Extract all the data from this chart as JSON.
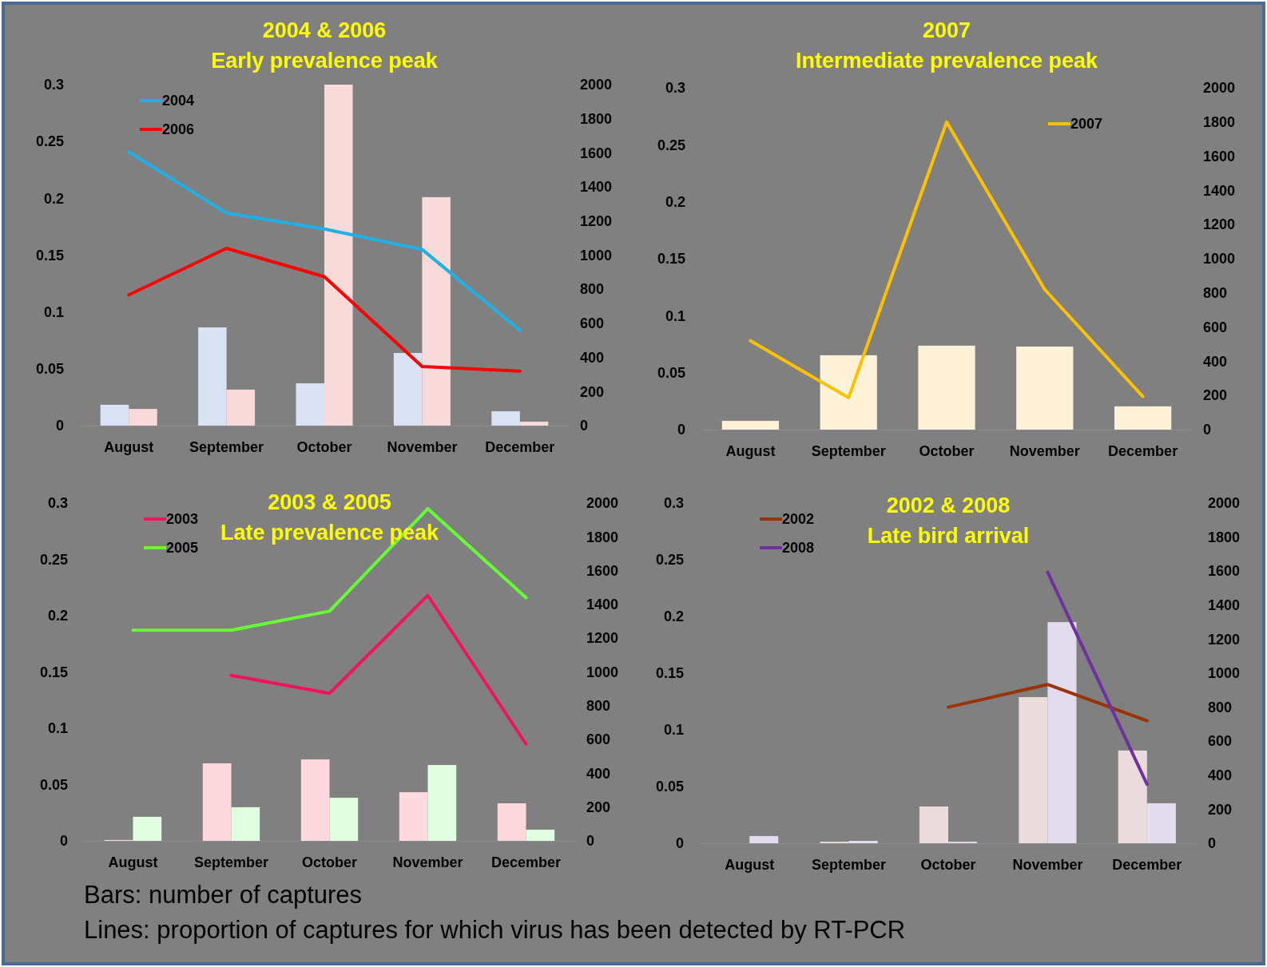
{
  "chart_data": [
    {
      "type": "bar",
      "title": "2004 & 2006",
      "subtitle": "Early prevalence peak",
      "categories": [
        "August",
        "September",
        "October",
        "November",
        "December"
      ],
      "ylim": [
        0,
        0.3
      ],
      "yticks": [
        0,
        0.05,
        0.1,
        0.15,
        0.2,
        0.25,
        0.3
      ],
      "y2lim": [
        0,
        2000
      ],
      "y2ticks": [
        0,
        200,
        400,
        600,
        800,
        1000,
        1200,
        1400,
        1600,
        1800,
        2000
      ],
      "legend": "top left",
      "series": [
        {
          "axis": "y2",
          "color": "#dae3f3",
          "values": [
            122,
            576,
            248,
            426,
            84
          ]
        },
        {
          "axis": "y2",
          "color": "#f8dada",
          "values": [
            98,
            211,
            2000,
            1340,
            23
          ]
        },
        {
          "type": "line",
          "axis": "y",
          "name": "2004",
          "color": "#1fb0e8",
          "values": [
            0.241,
            0.187,
            0.173,
            0.155,
            0.084
          ]
        },
        {
          "type": "line",
          "axis": "y",
          "name": "2006",
          "color": "#ff0000",
          "values": [
            0.115,
            0.156,
            0.131,
            0.052,
            0.048
          ]
        }
      ]
    },
    {
      "type": "bar",
      "title": "2007",
      "subtitle": "Intermediate prevalence peak",
      "categories": [
        "August",
        "September",
        "October",
        "November",
        "December"
      ],
      "ylim": [
        0,
        0.3
      ],
      "yticks": [
        0,
        0.05,
        0.1,
        0.15,
        0.2,
        0.25,
        0.3
      ],
      "y2lim": [
        0,
        2000
      ],
      "y2ticks": [
        0,
        200,
        400,
        600,
        800,
        1000,
        1200,
        1400,
        1600,
        1800,
        2000
      ],
      "legend": "top right",
      "series": [
        {
          "axis": "y2",
          "color": "#fff2d9",
          "values": [
            51,
            435,
            491,
            486,
            136
          ]
        },
        {
          "type": "line",
          "axis": "y",
          "name": "2007",
          "color": "#ffc000",
          "values": [
            0.078,
            0.028,
            0.27,
            0.123,
            0.029
          ]
        }
      ]
    },
    {
      "type": "bar",
      "title": "2003 & 2005",
      "subtitle": "Late prevalence peak",
      "categories": [
        "August",
        "September",
        "October",
        "November",
        "December"
      ],
      "ylim": [
        0,
        0.3
      ],
      "yticks": [
        0,
        0.05,
        0.1,
        0.15,
        0.2,
        0.25,
        0.3
      ],
      "y2lim": [
        0,
        2000
      ],
      "y2ticks": [
        0,
        200,
        400,
        600,
        800,
        1000,
        1200,
        1400,
        1600,
        1800,
        2000
      ],
      "legend": "top left",
      "series": [
        {
          "axis": "y2",
          "color": "#ffd9e0",
          "values": [
            5,
            459,
            482,
            288,
            222
          ]
        },
        {
          "axis": "y2",
          "color": "#e0ffe0",
          "values": [
            142,
            199,
            255,
            449,
            66
          ]
        },
        {
          "type": "line",
          "axis": "y",
          "name": "2003",
          "color": "#f0145f",
          "values": [
            null,
            0.147,
            0.131,
            0.218,
            0.086
          ]
        },
        {
          "type": "line",
          "axis": "y",
          "name": "2005",
          "color": "#66ff33",
          "values": [
            0.187,
            0.187,
            0.204,
            0.295,
            0.216
          ]
        }
      ]
    },
    {
      "type": "bar",
      "title": "2002 & 2008",
      "subtitle": "Late bird arrival",
      "categories": [
        "August",
        "September",
        "October",
        "November",
        "December"
      ],
      "ylim": [
        0,
        0.3
      ],
      "yticks": [
        0,
        0.05,
        0.1,
        0.15,
        0.2,
        0.25,
        0.3
      ],
      "y2lim": [
        0,
        2000
      ],
      "y2ticks": [
        0,
        200,
        400,
        600,
        800,
        1000,
        1200,
        1400,
        1600,
        1800,
        2000
      ],
      "legend": "top left",
      "annotations": [
        "Bars: number of captures",
        "Lines: proportion of captures for which virus has been detected by RT-PCR"
      ],
      "series": [
        {
          "axis": "y2",
          "color": "#eadcdc",
          "values": [
            null,
            9,
            216,
            859,
            545
          ]
        },
        {
          "axis": "y2",
          "color": "#e3dcee",
          "values": [
            42,
            14,
            9,
            1300,
            235
          ]
        },
        {
          "type": "line",
          "axis": "y",
          "name": "2002",
          "color": "#993300",
          "values": [
            null,
            null,
            0.12,
            0.14,
            0.108
          ]
        },
        {
          "type": "line",
          "axis": "y",
          "name": "2008",
          "color": "#7030a0",
          "values": [
            null,
            null,
            null,
            0.239,
            0.052
          ]
        }
      ]
    }
  ]
}
